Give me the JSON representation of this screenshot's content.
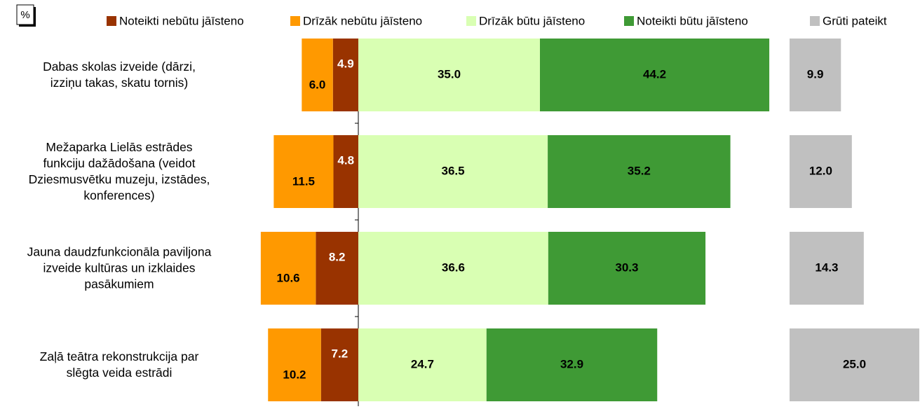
{
  "chart_data": {
    "type": "diverging-bar",
    "unit_label": "%",
    "categories": [
      "Dabas skolas izveide (dārzi,\nizziņu takas, skatu tornis)",
      "Mežaparka Lielās estrādes\nfunkciju dažādošana (veidot\nDziesmusvētku muzeju, izstādes,\nkonferences)",
      "Jauna daudzfunkcionāla paviljona\nizveide kultūras un izklaides\npasākumiem",
      "Zaļā teātra rekonstrukcija par\nslēgta veida estrādi"
    ],
    "series": [
      {
        "name": "Noteikti nebūtu jāīsteno",
        "color": "#993300",
        "side": "left",
        "values": [
          4.9,
          4.8,
          8.2,
          7.2
        ],
        "value_labels": [
          "4.9",
          "4.8",
          "8.2",
          "7.2"
        ]
      },
      {
        "name": "Drīzāk nebūtu jāīsteno",
        "color": "#FF9900",
        "side": "left",
        "values": [
          6.0,
          11.5,
          10.6,
          10.2
        ],
        "value_labels": [
          "6.0",
          "11.5",
          "10.6",
          "10.2"
        ]
      },
      {
        "name": "Drīzāk būtu jāīsteno",
        "color": "#D9FFB3",
        "side": "right",
        "values": [
          35.0,
          36.5,
          36.6,
          24.7
        ],
        "value_labels": [
          "35.0",
          "36.5",
          "36.6",
          "24.7"
        ]
      },
      {
        "name": "Noteikti būtu jāīsteno",
        "color": "#3F9A35",
        "side": "right",
        "values": [
          44.2,
          35.2,
          30.3,
          32.9
        ],
        "value_labels": [
          "44.2",
          "35.2",
          "30.3",
          "32.9"
        ]
      },
      {
        "name": "Grūti pateikt",
        "color": "#C0C0C0",
        "side": "apart",
        "values": [
          9.9,
          12.0,
          14.3,
          25.0
        ],
        "value_labels": [
          "9.9",
          "12.0",
          "14.3",
          "25.0"
        ]
      }
    ]
  }
}
